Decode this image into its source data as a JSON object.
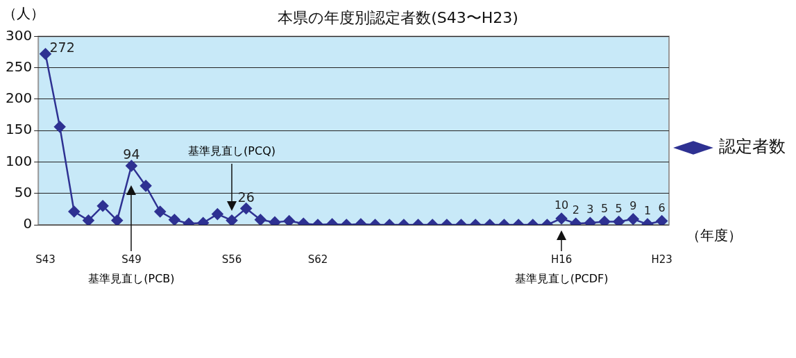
{
  "chart_data": {
    "type": "line",
    "title": "本県の年度別認定者数(S43〜H23)",
    "ylabel": "（人）",
    "xlabel": "（年度）",
    "categories": [
      "S43",
      null,
      null,
      null,
      null,
      null,
      "S49",
      null,
      null,
      null,
      null,
      null,
      null,
      "S56",
      null,
      null,
      null,
      null,
      null,
      "S62",
      null,
      null,
      null,
      null,
      null,
      null,
      null,
      null,
      null,
      null,
      null,
      null,
      null,
      null,
      null,
      null,
      "H16",
      null,
      null,
      null,
      null,
      null,
      null,
      "H23"
    ],
    "series": [
      {
        "name": "認定者数",
        "color": "#2e3192",
        "values": [
          272,
          156,
          21,
          7,
          30,
          7,
          94,
          62,
          21,
          8,
          2,
          3,
          17,
          7,
          26,
          8,
          4,
          6,
          2,
          0,
          1,
          0,
          1,
          0,
          0,
          0,
          0,
          0,
          0,
          0,
          0,
          0,
          0,
          0,
          0,
          0,
          10,
          2,
          3,
          5,
          5,
          9,
          1,
          6
        ],
        "value_labels": [
          "272",
          null,
          null,
          null,
          null,
          null,
          "94",
          null,
          null,
          null,
          null,
          null,
          null,
          null,
          "26",
          null,
          null,
          null,
          null,
          null,
          null,
          null,
          null,
          null,
          null,
          null,
          null,
          null,
          null,
          null,
          null,
          null,
          null,
          null,
          null,
          null,
          "10",
          "2",
          "3",
          "5",
          "5",
          "9",
          "1",
          "6"
        ]
      }
    ],
    "annotations": [
      "基準見直し(PCB)",
      "基準見直し(PCQ)",
      "基準見直し(PCDF)"
    ],
    "ylim": [
      0,
      300
    ],
    "yticks": [
      0,
      50,
      100,
      150,
      200,
      250,
      300
    ],
    "grid": "y",
    "legend": "right",
    "marker": "diamond",
    "line_style": "solid"
  }
}
